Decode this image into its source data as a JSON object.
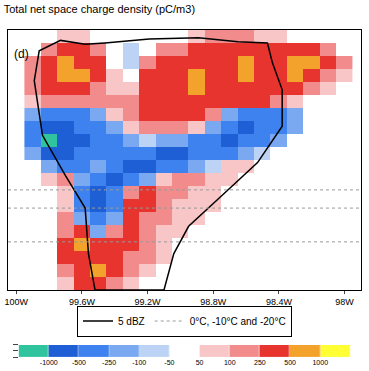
{
  "chart_data": {
    "type": "heatmap",
    "title": "Total net space charge density (pC/m3)",
    "annotations": [
      "(d)"
    ],
    "x": [
      -99.9,
      -99.8,
      -99.7,
      -99.6,
      -99.5,
      -99.4,
      -99.3,
      -99.2,
      -99.1,
      -99.0,
      -98.9,
      -98.8,
      -98.7,
      -98.6,
      -98.5,
      -98.4,
      -98.3,
      -98.2,
      -98.1,
      -98.0
    ],
    "y": [
      0.5,
      1.5,
      2.5,
      3.5,
      4.5,
      5.5,
      6.5,
      7.5,
      8.5,
      9.5,
      10.5,
      11.5,
      12.5,
      13.5,
      14.5,
      15.5,
      16.5,
      17.5,
      18.5,
      19.5
    ],
    "cells": [
      [
        0,
        0,
        80,
        300,
        300,
        150,
        80,
        0,
        0,
        0,
        0,
        0,
        0,
        0,
        0,
        0,
        0,
        0,
        0,
        0
      ],
      [
        0,
        0,
        150,
        300,
        600,
        300,
        150,
        80,
        0,
        0,
        0,
        0,
        0,
        0,
        0,
        0,
        0,
        0,
        0,
        0
      ],
      [
        0,
        0,
        300,
        300,
        300,
        300,
        150,
        150,
        80,
        0,
        0,
        0,
        0,
        0,
        0,
        0,
        0,
        0,
        0,
        0
      ],
      [
        0,
        0,
        300,
        600,
        300,
        300,
        300,
        150,
        80,
        0,
        0,
        0,
        0,
        0,
        0,
        0,
        0,
        0,
        0,
        0
      ],
      [
        0,
        0,
        150,
        300,
        -150,
        150,
        300,
        150,
        80,
        80,
        0,
        0,
        0,
        0,
        0,
        0,
        0,
        0,
        0,
        0
      ],
      [
        0,
        0,
        150,
        -150,
        -300,
        -150,
        300,
        150,
        150,
        80,
        80,
        0,
        0,
        0,
        0,
        0,
        0,
        0,
        0,
        0
      ],
      [
        0,
        0,
        80,
        -300,
        -600,
        -300,
        300,
        300,
        150,
        80,
        80,
        80,
        0,
        0,
        0,
        0,
        0,
        0,
        0,
        0
      ],
      [
        0,
        0,
        80,
        -300,
        -600,
        -300,
        150,
        300,
        150,
        150,
        80,
        80,
        0,
        0,
        0,
        0,
        0,
        0,
        0,
        0
      ],
      [
        0,
        80,
        150,
        -150,
        -300,
        -600,
        -300,
        -150,
        80,
        150,
        150,
        80,
        80,
        0,
        0,
        0,
        0,
        0,
        0,
        0
      ],
      [
        0,
        -150,
        -300,
        -300,
        -150,
        -300,
        -600,
        -600,
        -300,
        -300,
        -150,
        -80,
        80,
        80,
        0,
        0,
        0,
        0,
        0,
        0
      ],
      [
        -150,
        -600,
        -600,
        -300,
        -300,
        -300,
        -300,
        -300,
        -600,
        -600,
        -300,
        -300,
        -300,
        -150,
        -80,
        0,
        0,
        0,
        0,
        0
      ],
      [
        -300,
        -1200,
        -600,
        -600,
        -300,
        -300,
        -150,
        -80,
        -150,
        -150,
        -300,
        -300,
        -600,
        -300,
        -300,
        -150,
        0,
        0,
        0,
        0
      ],
      [
        -300,
        -600,
        -600,
        -300,
        -300,
        -150,
        80,
        150,
        150,
        150,
        80,
        -150,
        -300,
        -600,
        -300,
        -300,
        -150,
        0,
        0,
        0
      ],
      [
        -150,
        -300,
        -300,
        -300,
        -150,
        80,
        150,
        300,
        300,
        300,
        300,
        150,
        -150,
        -300,
        -300,
        -300,
        -150,
        0,
        0,
        0
      ],
      [
        80,
        150,
        150,
        150,
        150,
        150,
        150,
        300,
        300,
        300,
        300,
        300,
        300,
        300,
        300,
        150,
        80,
        0,
        0,
        0
      ],
      [
        120,
        300,
        300,
        300,
        150,
        80,
        80,
        300,
        300,
        300,
        600,
        300,
        300,
        300,
        300,
        300,
        300,
        150,
        80,
        0
      ],
      [
        150,
        300,
        600,
        600,
        300,
        60,
        0,
        300,
        300,
        300,
        600,
        300,
        300,
        600,
        300,
        300,
        600,
        300,
        150,
        80
      ],
      [
        150,
        300,
        600,
        300,
        300,
        0,
        -80,
        150,
        300,
        300,
        300,
        300,
        300,
        600,
        300,
        300,
        600,
        600,
        300,
        150
      ],
      [
        0,
        150,
        300,
        300,
        150,
        0,
        -80,
        0,
        150,
        150,
        300,
        300,
        300,
        300,
        300,
        300,
        300,
        300,
        150,
        0
      ],
      [
        0,
        0,
        80,
        80,
        0,
        0,
        0,
        0,
        0,
        0,
        80,
        150,
        150,
        150,
        80,
        80,
        0,
        0,
        0,
        0
      ]
    ],
    "xlim": [
      -100.05,
      -97.9
    ],
    "xticks": [
      {
        "value": -100,
        "label": "100W"
      },
      {
        "value": -99.6,
        "label": "99.6W"
      },
      {
        "value": -99.2,
        "label": "99.2W"
      },
      {
        "value": -98.8,
        "label": "98.8W"
      },
      {
        "value": -98.4,
        "label": "98.4W"
      },
      {
        "value": -98,
        "label": "98W"
      }
    ],
    "ylim": [
      0,
      20
    ],
    "tick_labels": "x",
    "colorbar": {
      "levels": [
        -1000,
        -500,
        -250,
        -100,
        -50,
        50,
        100,
        250,
        500,
        1000
      ],
      "colors": [
        "#2fc49d",
        "#1f5fd6",
        "#3d82ee",
        "#7aa9f2",
        "#bcd3f5",
        "#ffffff",
        "#f8c6c6",
        "#f28b8b",
        "#e8342e",
        "#f3a22c",
        "#ffff33"
      ]
    },
    "series": [
      {
        "name": "5 dBZ",
        "type": "line",
        "color": "#000000",
        "line_style": "solid",
        "x": [
          -99.52,
          -99.56,
          -99.58,
          -99.7,
          -99.84,
          -99.89,
          -99.86,
          -99.73,
          -99.58,
          -99.46,
          -99.19,
          -98.89,
          -98.65,
          -98.47,
          -98.44,
          -98.38,
          -98.38,
          -98.53,
          -98.77,
          -98.95,
          -99.04,
          -99.1,
          -99.52
        ],
        "y": [
          0,
          2.8,
          6.3,
          8.8,
          11.9,
          16.1,
          18.4,
          19.2,
          18.9,
          19.0,
          19.3,
          19.4,
          19.1,
          19.0,
          17.5,
          15.4,
          12.6,
          9.8,
          7.0,
          4.9,
          2.8,
          0,
          0
        ]
      },
      {
        "name": "0°C, -10°C and -20°C",
        "type": "hline",
        "color": "#9a9a9a",
        "line_style": "dot",
        "y": [
          3.7,
          6.3,
          7.7
        ]
      }
    ],
    "legend": "bottom"
  }
}
